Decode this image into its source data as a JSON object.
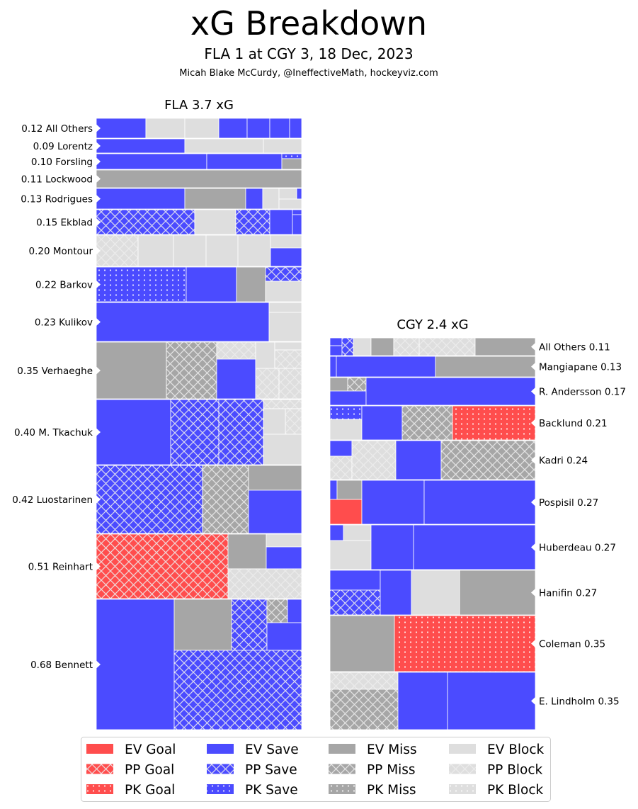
{
  "title": "xG Breakdown",
  "subtitle": "FLA 1 at CGY 3, 18 Dec, 2023",
  "byline": "Micah Blake McCurdy, @IneffectiveMath, hockeyviz.com",
  "colors": {
    "goal": "#ff4d4d",
    "save": "#4b4bff",
    "miss": "#a6a6a6",
    "block": "#dedede"
  },
  "chart_data": {
    "type": "treemap",
    "teams": [
      {
        "title": "FLA 3.7 xG",
        "team": "FLA",
        "xg_total": 3.7,
        "players": [
          {
            "name": "All Others",
            "xg": "0.12"
          },
          {
            "name": "Lorentz",
            "xg": "0.09"
          },
          {
            "name": "Forsling",
            "xg": "0.10"
          },
          {
            "name": "Lockwood",
            "xg": "0.11"
          },
          {
            "name": "Rodrigues",
            "xg": "0.13"
          },
          {
            "name": "Ekblad",
            "xg": "0.15"
          },
          {
            "name": "Montour",
            "xg": "0.20"
          },
          {
            "name": "Barkov",
            "xg": "0.22"
          },
          {
            "name": "Kulikov",
            "xg": "0.23"
          },
          {
            "name": "Verhaeghe",
            "xg": "0.35"
          },
          {
            "name": "M. Tkachuk",
            "xg": "0.40"
          },
          {
            "name": "Luostarinen",
            "xg": "0.42"
          },
          {
            "name": "Reinhart",
            "xg": "0.51"
          },
          {
            "name": "Bennett",
            "xg": "0.68"
          }
        ]
      },
      {
        "title": "CGY 2.4 xG",
        "team": "CGY",
        "xg_total": 2.4,
        "players": [
          {
            "name": "All Others",
            "xg": "0.11"
          },
          {
            "name": "Mangiapane",
            "xg": "0.13"
          },
          {
            "name": "R. Andersson",
            "xg": "0.17"
          },
          {
            "name": "Backlund",
            "xg": "0.21"
          },
          {
            "name": "Kadri",
            "xg": "0.24"
          },
          {
            "name": "Pospisil",
            "xg": "0.27"
          },
          {
            "name": "Huberdeau",
            "xg": "0.27"
          },
          {
            "name": "Hanifin",
            "xg": "0.27"
          },
          {
            "name": "Coleman",
            "xg": "0.35"
          },
          {
            "name": "E. Lindholm",
            "xg": "0.35"
          }
        ]
      }
    ],
    "legend": [
      {
        "code": "EG",
        "label": "EV Goal"
      },
      {
        "code": "PG",
        "label": "PP Goal"
      },
      {
        "code": "KG",
        "label": "PK Goal"
      },
      {
        "code": "ES",
        "label": "EV Save"
      },
      {
        "code": "PS",
        "label": "PP Save"
      },
      {
        "code": "KS",
        "label": "PK Save"
      },
      {
        "code": "EM",
        "label": "EV Miss"
      },
      {
        "code": "PM",
        "label": "PP Miss"
      },
      {
        "code": "KM",
        "label": "PK Miss"
      },
      {
        "code": "EB",
        "label": "EV Block"
      },
      {
        "code": "PB",
        "label": "PP Block"
      },
      {
        "code": "KB",
        "label": "PK Block"
      }
    ]
  }
}
